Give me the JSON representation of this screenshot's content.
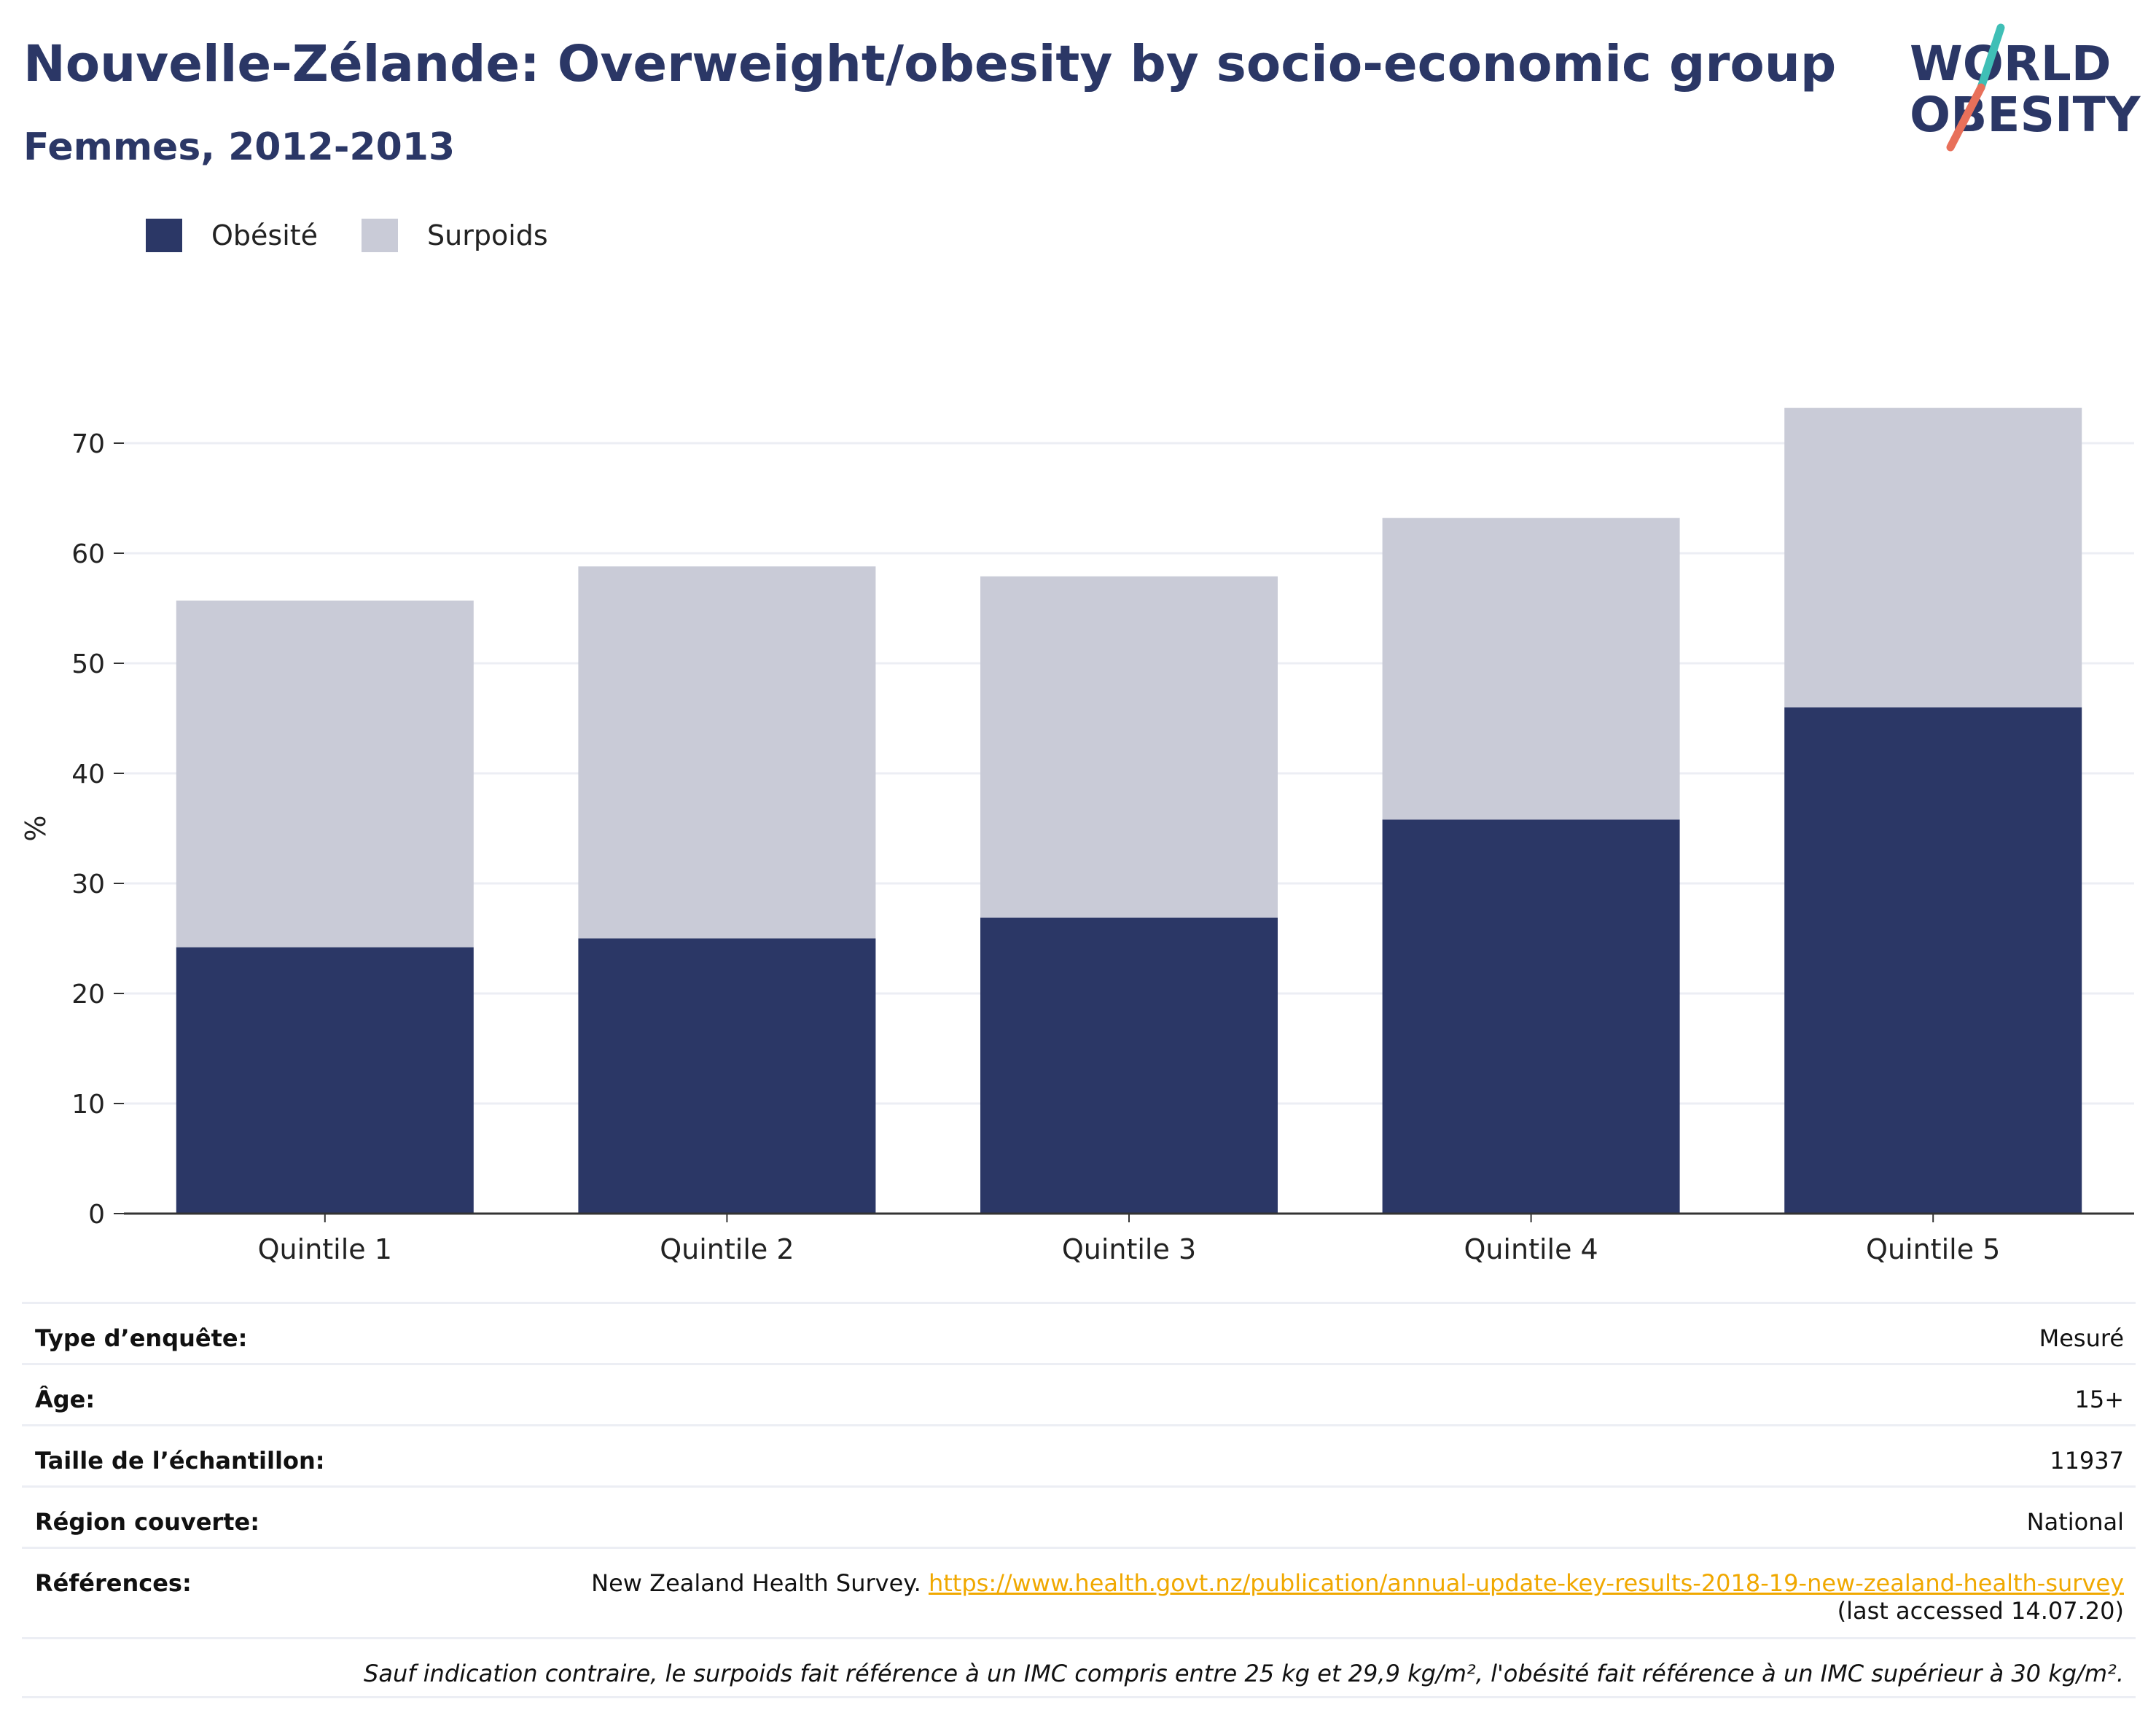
{
  "title": "Nouvelle-Zélande: Overweight/obesity by socio-economic group",
  "subtitle": "Femmes, 2012-2013",
  "logo": {
    "line1": "WORLD",
    "line2": "OBESITY",
    "colors": {
      "navy": "#2b3766",
      "teal": "#3fbfb6",
      "coral": "#e8705a"
    }
  },
  "legend": [
    {
      "name": "Obésité",
      "color": "#2b3766"
    },
    {
      "name": "Surpoids",
      "color": "#c9cbd7"
    }
  ],
  "chart_data": {
    "type": "bar",
    "stacked": true,
    "categories": [
      "Quintile 1",
      "Quintile 2",
      "Quintile 3",
      "Quintile 4",
      "Quintile 5"
    ],
    "series": [
      {
        "name": "Obésité",
        "values": [
          24.2,
          25.0,
          26.9,
          35.8,
          46.0
        ],
        "color": "#2b3766"
      },
      {
        "name": "Surpoids",
        "values": [
          31.5,
          33.8,
          31.0,
          27.4,
          27.2
        ],
        "color": "#c9cbd7"
      }
    ],
    "ylabel": "%",
    "ylim": [
      0,
      75
    ],
    "yticks": [
      0,
      10,
      20,
      30,
      40,
      50,
      60,
      70
    ],
    "grid": true,
    "legend_position": "top-left"
  },
  "info": {
    "survey_type_label": "Type d’enquête:",
    "survey_type_value": "Mesuré",
    "age_label": "Âge:",
    "age_value": "15+",
    "sample_label": "Taille de l’échantillon:",
    "sample_value": "11937",
    "region_label": "Région couverte:",
    "region_value": "National",
    "references_label": "Références:",
    "references_text": "New Zealand Health Survey.",
    "references_url": "https://www.health.govt.nz/publication/annual-update-key-results-2018-19-new-zealand-health-survey",
    "references_accessed": "(last accessed 14.07.20)",
    "note": "Sauf indication contraire, le surpoids fait référence à un IMC compris entre 25 kg et 29,9 kg/m², l'obésité fait référence à un IMC supérieur à 30 kg/m²."
  }
}
